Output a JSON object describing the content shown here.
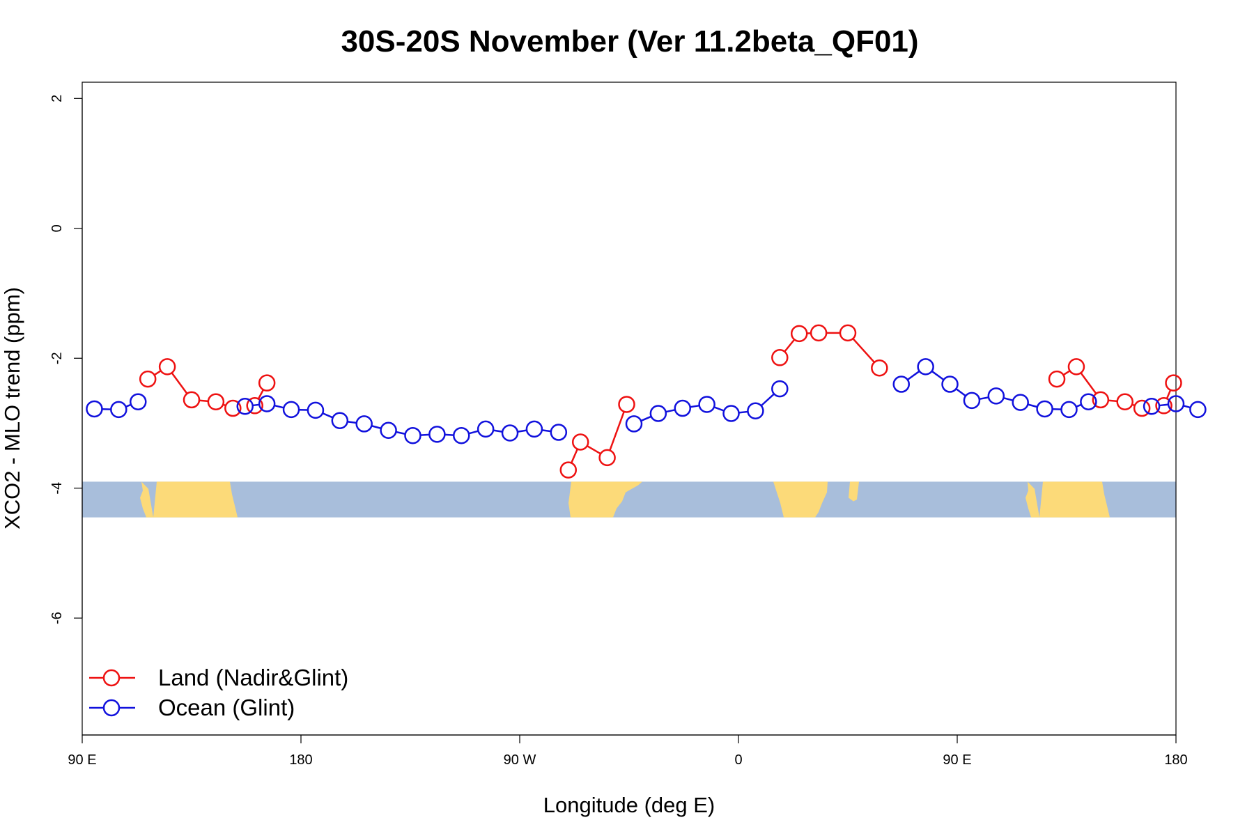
{
  "chart_data": {
    "type": "line",
    "title": "30S-20S November (Ver 11.2beta_QF01)",
    "xlabel": "Longitude (deg E)",
    "ylabel": "XCO2 - MLO trend (ppm)",
    "xlim": [
      90,
      540
    ],
    "ylim": [
      -7.8,
      2.25
    ],
    "x_ticks": [
      {
        "value": 90,
        "label": "90 E"
      },
      {
        "value": 180,
        "label": "180"
      },
      {
        "value": 270,
        "label": "90 W"
      },
      {
        "value": 360,
        "label": "0"
      },
      {
        "value": 450,
        "label": "90 E"
      },
      {
        "value": 540,
        "label": "180"
      }
    ],
    "y_ticks": [
      {
        "value": 2,
        "label": "2"
      },
      {
        "value": 0,
        "label": "0"
      },
      {
        "value": -2,
        "label": "-2"
      },
      {
        "value": -4,
        "label": "-4"
      },
      {
        "value": -6,
        "label": "-6"
      }
    ],
    "map_band": {
      "y_top": -3.9,
      "y_bottom": -4.45,
      "ocean_color": "#a8bedb",
      "land_color": "#fcda79"
    },
    "series": [
      {
        "name": "Land (Nadir&Glint)",
        "color": "#ee1111",
        "segments": [
          [
            [
              117,
              -2.32
            ],
            [
              125,
              -2.13
            ],
            [
              135,
              -2.64
            ],
            [
              145,
              -2.67
            ],
            [
              152,
              -2.77
            ]
          ],
          [
            [
              161,
              -2.73
            ],
            [
              166,
              -2.38
            ]
          ],
          [
            [
              290,
              -3.72
            ],
            [
              295,
              -3.29
            ],
            [
              306,
              -3.53
            ],
            [
              314,
              -2.71
            ]
          ],
          [
            [
              377,
              -1.99
            ],
            [
              385,
              -1.62
            ],
            [
              393,
              -1.61
            ],
            [
              405,
              -1.61
            ],
            [
              418,
              -2.15
            ]
          ],
          [
            [
              491,
              -2.32
            ],
            [
              499,
              -2.13
            ],
            [
              509,
              -2.64
            ],
            [
              519,
              -2.67
            ],
            [
              526,
              -2.77
            ]
          ],
          [
            [
              535,
              -2.73
            ],
            [
              539,
              -2.38
            ]
          ]
        ]
      },
      {
        "name": "Ocean (Glint)",
        "color": "#1111dd",
        "segments": [
          [
            [
              95,
              -2.78
            ],
            [
              105,
              -2.79
            ],
            [
              113,
              -2.67
            ]
          ],
          [
            [
              157,
              -2.74
            ],
            [
              166,
              -2.7
            ],
            [
              176,
              -2.79
            ],
            [
              186,
              -2.8
            ],
            [
              196,
              -2.96
            ],
            [
              206,
              -3.01
            ],
            [
              216,
              -3.11
            ],
            [
              226,
              -3.19
            ],
            [
              236,
              -3.17
            ],
            [
              246,
              -3.19
            ],
            [
              256,
              -3.09
            ],
            [
              266,
              -3.15
            ],
            [
              276,
              -3.09
            ],
            [
              286,
              -3.14
            ]
          ],
          [
            [
              317,
              -3.01
            ],
            [
              327,
              -2.85
            ],
            [
              337,
              -2.77
            ],
            [
              347,
              -2.71
            ],
            [
              357,
              -2.85
            ],
            [
              367,
              -2.81
            ],
            [
              377,
              -2.47
            ]
          ],
          [
            [
              427,
              -2.4
            ],
            [
              437,
              -2.13
            ],
            [
              447,
              -2.4
            ],
            [
              456,
              -2.65
            ],
            [
              466,
              -2.58
            ],
            [
              476,
              -2.68
            ],
            [
              486,
              -2.78
            ],
            [
              496,
              -2.79
            ],
            [
              504,
              -2.67
            ]
          ],
          [
            [
              530,
              -2.74
            ],
            [
              540,
              -2.7
            ],
            [
              549,
              -2.79
            ]
          ]
        ]
      }
    ],
    "legend_position": "bottom-left"
  }
}
